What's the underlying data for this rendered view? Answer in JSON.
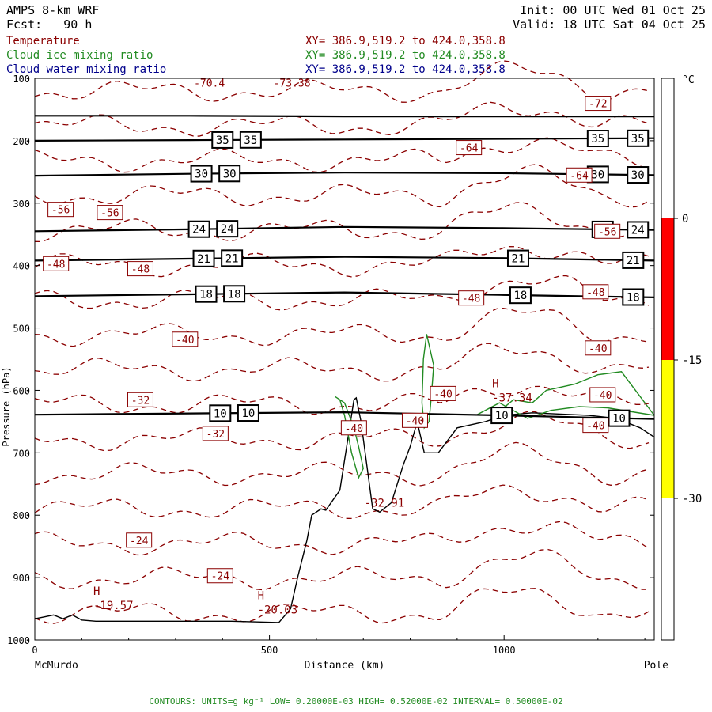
{
  "header": {
    "model": "AMPS 8-km WRF",
    "fcst": "Fcst:   90 h",
    "init": "Init: 00 UTC Wed 01 Oct 25",
    "valid": "Valid: 18 UTC Sat 04 Oct 25",
    "fields": [
      {
        "name": "Temperature",
        "xy": "XY= 386.9,519.2 to 424.0,358.8",
        "color": "#8b0000"
      },
      {
        "name": "Cloud ice mixing ratio",
        "xy": "XY= 386.9,519.2 to 424.0,358.8",
        "color": "#228b22"
      },
      {
        "name": "Cloud water mixing ratio",
        "xy": "XY= 386.9,519.2 to 424.0,358.8",
        "color": "#00008b"
      }
    ]
  },
  "footer": "CONTOURS:  UNITS=g kg⁻¹  LOW= 0.20000E-03  HIGH= 0.52000E-02  INTERVAL=  0.50000E-02",
  "chart_data": {
    "type": "line",
    "title": "",
    "xlabel": "Distance (km)",
    "ylabel": "Pressure (hPa)",
    "xlim": [
      0,
      1320
    ],
    "ylim": [
      1000,
      100
    ],
    "x_ticks": [
      0,
      500,
      1000
    ],
    "y_ticks": [
      100,
      200,
      300,
      400,
      500,
      600,
      700,
      800,
      900,
      1000
    ],
    "x_endpoints": {
      "left": "McMurdo",
      "right": "Pole"
    },
    "colorbar": {
      "unit": "°C",
      "ticks": [
        "0",
        "-15",
        "-30"
      ],
      "segments": [
        {
          "from": 0,
          "to": -15,
          "color": "#ff0000"
        },
        {
          "from": -15,
          "to": -30,
          "color": "#ffff00"
        }
      ]
    },
    "black_lines": [
      {
        "label": "35",
        "y": [
          200,
          199,
          198,
          197,
          196
        ],
        "label_x": [
          400,
          460,
          1200,
          1285
        ]
      },
      {
        "label": "30",
        "y": [
          256,
          253,
          251,
          252,
          255
        ],
        "label_x": [
          355,
          415,
          1200,
          1285
        ]
      },
      {
        "label": "24",
        "y": [
          345,
          342,
          338,
          340,
          343
        ],
        "label_x": [
          350,
          410,
          1210,
          1285
        ]
      },
      {
        "label": "21",
        "y": [
          392,
          389,
          386,
          388,
          392
        ],
        "label_x": [
          360,
          420,
          1030,
          1275
        ]
      },
      {
        "label": "18",
        "y": [
          449,
          446,
          443,
          447,
          451
        ],
        "label_x": [
          365,
          425,
          1035,
          1275
        ]
      },
      {
        "label": "10",
        "y": [
          639,
          637,
          635,
          640,
          646
        ],
        "label_x": [
          395,
          455,
          995,
          1245
        ]
      }
    ],
    "black_line_x": [
      0,
      330,
      660,
      990,
      1320
    ],
    "unlabeled_line": {
      "y": [
        160,
        160,
        161,
        161,
        161
      ]
    },
    "terrain": {
      "x": [
        0,
        20,
        40,
        60,
        80,
        100,
        130,
        200,
        300,
        420,
        520,
        545,
        560,
        580,
        590,
        610,
        620,
        650,
        680,
        685,
        695,
        720,
        735,
        760,
        785,
        800,
        815,
        830,
        860,
        880,
        900,
        930,
        960,
        1000,
        1060,
        1120,
        1180,
        1240,
        1290,
        1320
      ],
      "y": [
        966,
        963,
        960,
        966,
        960,
        968,
        970,
        970,
        970,
        970,
        972,
        950,
        900,
        840,
        800,
        790,
        792,
        760,
        615,
        612,
        650,
        790,
        795,
        780,
        720,
        690,
        650,
        700,
        700,
        680,
        660,
        655,
        650,
        640,
        636,
        638,
        640,
        645,
        660,
        675
      ]
    },
    "temperature_labels": [
      {
        "text": "-72",
        "x": 1200,
        "y": 140
      },
      {
        "text": "-64",
        "x": 925,
        "y": 211
      },
      {
        "text": "-64",
        "x": 1160,
        "y": 255
      },
      {
        "text": "-56",
        "x": 55,
        "y": 310
      },
      {
        "text": "-56",
        "x": 160,
        "y": 315
      },
      {
        "text": "-56",
        "x": 1220,
        "y": 345
      },
      {
        "text": "-48",
        "x": 45,
        "y": 397
      },
      {
        "text": "-48",
        "x": 225,
        "y": 405
      },
      {
        "text": "-48",
        "x": 930,
        "y": 452
      },
      {
        "text": "-48",
        "x": 1195,
        "y": 442
      },
      {
        "text": "-40",
        "x": 320,
        "y": 518
      },
      {
        "text": "-40",
        "x": 1200,
        "y": 532
      },
      {
        "text": "-40",
        "x": 870,
        "y": 605
      },
      {
        "text": "-40",
        "x": 1210,
        "y": 607
      },
      {
        "text": "-32",
        "x": 225,
        "y": 615
      },
      {
        "text": "-32",
        "x": 385,
        "y": 669
      },
      {
        "text": "-40",
        "x": 680,
        "y": 660
      },
      {
        "text": "-40",
        "x": 810,
        "y": 648
      },
      {
        "text": "-40",
        "x": 1195,
        "y": 656
      },
      {
        "text": "-24",
        "x": 222,
        "y": 840
      },
      {
        "text": "-24",
        "x": 395,
        "y": 897
      },
      {
        "text": "-70.4",
        "x": 372,
        "y": 107
      },
      {
        "text": "-73.38",
        "x": 548,
        "y": 107
      }
    ],
    "extrema": [
      {
        "type": "H",
        "value": "-19.57",
        "x": 150,
        "y": 938
      },
      {
        "type": "H",
        "value": "-20.03",
        "x": 500,
        "y": 945
      },
      {
        "type": "H",
        "value": "-37.34",
        "x": 1000,
        "y": 605
      }
    ],
    "min_label": {
      "text": "-32.91",
      "x": 745,
      "y": 780
    },
    "ice_contours": [
      {
        "x": [
          640,
          660,
          680,
          690,
          700,
          690,
          675,
          660,
          650,
          640
        ],
        "y": [
          610,
          620,
          660,
          690,
          725,
          740,
          700,
          640,
          615,
          610
        ]
      },
      {
        "x": [
          835,
          850,
          845,
          840,
          830,
          825,
          828,
          835
        ],
        "y": [
          510,
          560,
          610,
          650,
          660,
          620,
          550,
          510
        ]
      },
      {
        "x": [
          980,
          1020,
          1060,
          1090,
          1150,
          1200,
          1250,
          1290,
          1320
        ],
        "y": [
          640,
          615,
          620,
          600,
          590,
          575,
          570,
          610,
          640
        ]
      },
      {
        "x": [
          940,
          990,
          1050,
          1100,
          1160,
          1220,
          1320
        ],
        "y": [
          640,
          620,
          645,
          632,
          626,
          628,
          640
        ]
      }
    ]
  }
}
